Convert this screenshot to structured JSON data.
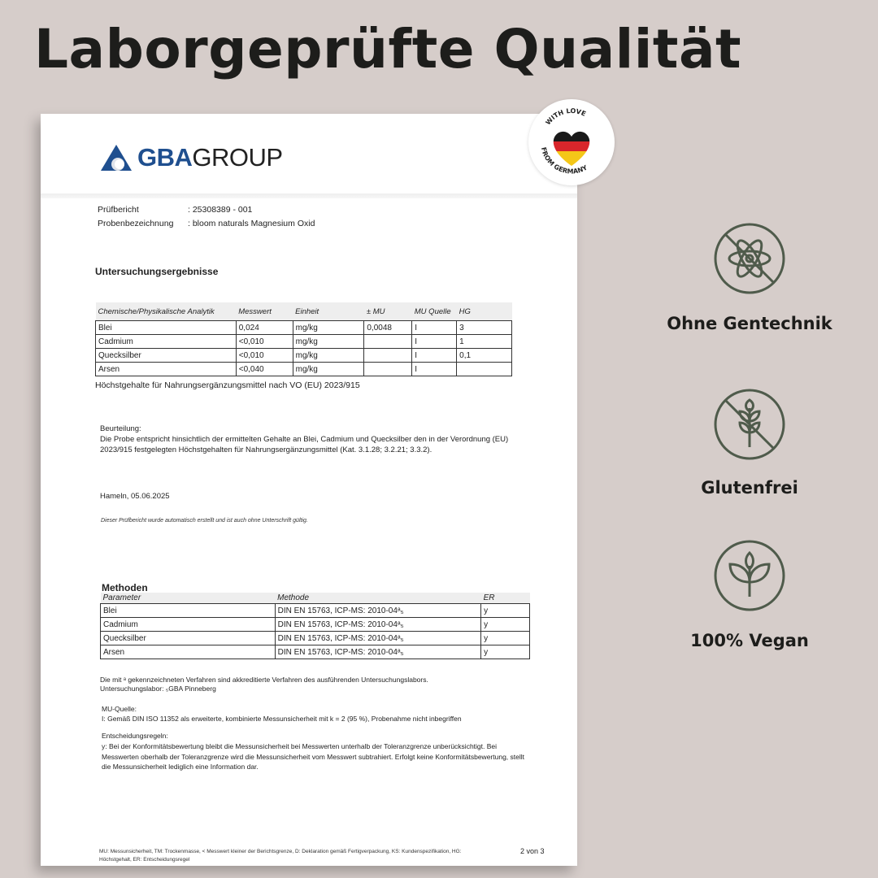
{
  "headline": "Laborgeprüfte Qualität",
  "badge": {
    "text_top": "WITH LOVE",
    "text_bottom": "FROM GERMANY",
    "colors": [
      "#1a1a1a",
      "#d8262b",
      "#f4c718"
    ]
  },
  "report": {
    "logo": {
      "bold": "GBA",
      "regular": "GROUP",
      "color": "#1f4f8f"
    },
    "meta": [
      {
        "label": "Prüfbericht",
        "value": ": 25308389 - 001"
      },
      {
        "label": "Probenbezeichnung",
        "value": ": bloom naturals Magnesium Oxid"
      }
    ],
    "results_title": "Untersuchungsergebnisse",
    "results_table": {
      "headers": [
        "Chemische/Physikalische Analytik",
        "Messwert",
        "Einheit",
        "± MU",
        "MU Quelle",
        "HG"
      ],
      "rows": [
        [
          "Blei",
          "0,024",
          "mg/kg",
          "0,0048",
          "I",
          "3"
        ],
        [
          "Cadmium",
          "<0,010",
          "mg/kg",
          "",
          "I",
          "1"
        ],
        [
          "Quecksilber",
          "<0,010",
          "mg/kg",
          "",
          "I",
          "0,1"
        ],
        [
          "Arsen",
          "<0,040",
          "mg/kg",
          "",
          "I",
          ""
        ]
      ]
    },
    "results_note": "Höchstgehalte für Nahrungsergänzungsmittel nach VO (EU) 2023/915",
    "assessment_label": "Beurteilung:",
    "assessment_text": "Die Probe entspricht hinsichtlich der ermittelten Gehalte an Blei, Cadmium und Quecksilber den in der Verordnung (EU) 2023/915 festgelegten Höchstgehalten für Nahrungsergänzungsmittel (Kat. 3.1.28; 3.2.21; 3.3.2).",
    "place_date": "Hameln, 05.06.2025",
    "signature_note": "Dieser Prüfbericht wurde automatisch erstellt und ist auch ohne Unterschrift gültig.",
    "methods_title": "Methoden",
    "methods_table": {
      "headers": [
        "Parameter",
        "Methode",
        "ER"
      ],
      "rows": [
        [
          "Blei",
          "DIN EN 15763, ICP-MS: 2010-04ᵃ₅",
          "y"
        ],
        [
          "Cadmium",
          "DIN EN 15763, ICP-MS: 2010-04ᵃ₅",
          "y"
        ],
        [
          "Quecksilber",
          "DIN EN 15763, ICP-MS: 2010-04ᵃ₅",
          "y"
        ],
        [
          "Arsen",
          "DIN EN 15763, ICP-MS: 2010-04ᵃ₅",
          "y"
        ]
      ]
    },
    "accredit_note": "Die mit ᵃ gekennzeichneten Verfahren sind akkreditierte Verfahren des ausführenden Untersuchungslabors.",
    "lab": "Untersuchungslabor:  ₅GBA Pinneberg",
    "mu_label": "MU-Quelle:",
    "mu_text": "I: Gemäß DIN ISO 11352 als erweiterte, kombinierte Messunsicherheit mit k = 2 (95 %), Probenahme nicht inbegriffen",
    "rules_label": "Entscheidungsregeln:",
    "rules_text": "y: Bei der Konformitätsbewertung bleibt die Messunsicherheit bei Messwerten unterhalb der Toleranzgrenze unberücksichtigt. Bei Messwerten oberhalb der Toleranzgrenze wird die Messunsicherheit vom Messwert subtrahiert. Erfolgt keine Konformitätsbewertung, stellt die Messunsicherheit lediglich eine Information dar.",
    "footer_legend": "MU: Messunsicherheit, TM: Trockenmasse, < Messwert kleiner der Berichtsgrenze, D: Deklaration gemäß Fertigverpackung, KS: Kundenspezifikation, HG: Höchstgehalt, ER: Entscheidungsregel",
    "page": "2 von 3"
  },
  "features": {
    "icon_color": "#4f5b4b",
    "items": [
      {
        "label": "Ohne Gentechnik",
        "icon": "no-gmo-atom-icon"
      },
      {
        "label": "Glutenfrei",
        "icon": "gluten-free-wheat-icon"
      },
      {
        "label": "100% Vegan",
        "icon": "vegan-leaf-icon"
      }
    ]
  }
}
